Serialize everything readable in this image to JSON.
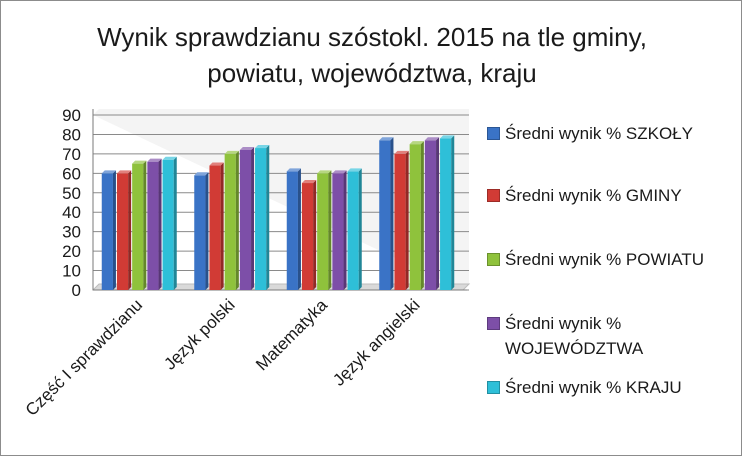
{
  "chart_data": {
    "type": "bar",
    "title": "Wynik sprawdzianu szóstokl. 2015 na tle gminy, powiatu, województwa, kraju",
    "title_lines": [
      "Wynik sprawdzianu szóstokl. 2015 na tle gminy,",
      "powiatu, województwa, kraju"
    ],
    "categories": [
      "Część I sprawdzianu",
      "Język polski",
      "Matematyka",
      "Język angielski"
    ],
    "series": [
      {
        "name": "Średni wynik % SZKOŁY",
        "color": "#3a73c6",
        "values": [
          60,
          59,
          61,
          77
        ]
      },
      {
        "name": "Średni wynik % GMINY",
        "color": "#d13b35",
        "values": [
          60,
          64,
          55,
          70
        ]
      },
      {
        "name": "Średni wynik % POWIATU",
        "color": "#8fc23c",
        "values": [
          65,
          70,
          60,
          75
        ]
      },
      {
        "name": "Średni wynik % WOJEWÓDZTWA",
        "color": "#7d4fa8",
        "values": [
          66,
          72,
          60,
          77
        ]
      },
      {
        "name": "Średni wynik % KRAJU",
        "color": "#2ebfd8",
        "values": [
          67,
          73,
          61,
          78
        ]
      }
    ],
    "legend_lines": [
      [
        "Średni wynik % SZKOŁY"
      ],
      [
        "Średni wynik % GMINY"
      ],
      [
        "Średni wynik % POWIATU"
      ],
      [
        "Średni wynik %",
        "WOJEWÓDZTWA"
      ],
      [
        "Średni wynik % KRAJU"
      ]
    ],
    "ylim": [
      0,
      90
    ],
    "yticks": [
      0,
      10,
      20,
      30,
      40,
      50,
      60,
      70,
      80,
      90
    ],
    "grid": true,
    "legend_position": "right"
  }
}
